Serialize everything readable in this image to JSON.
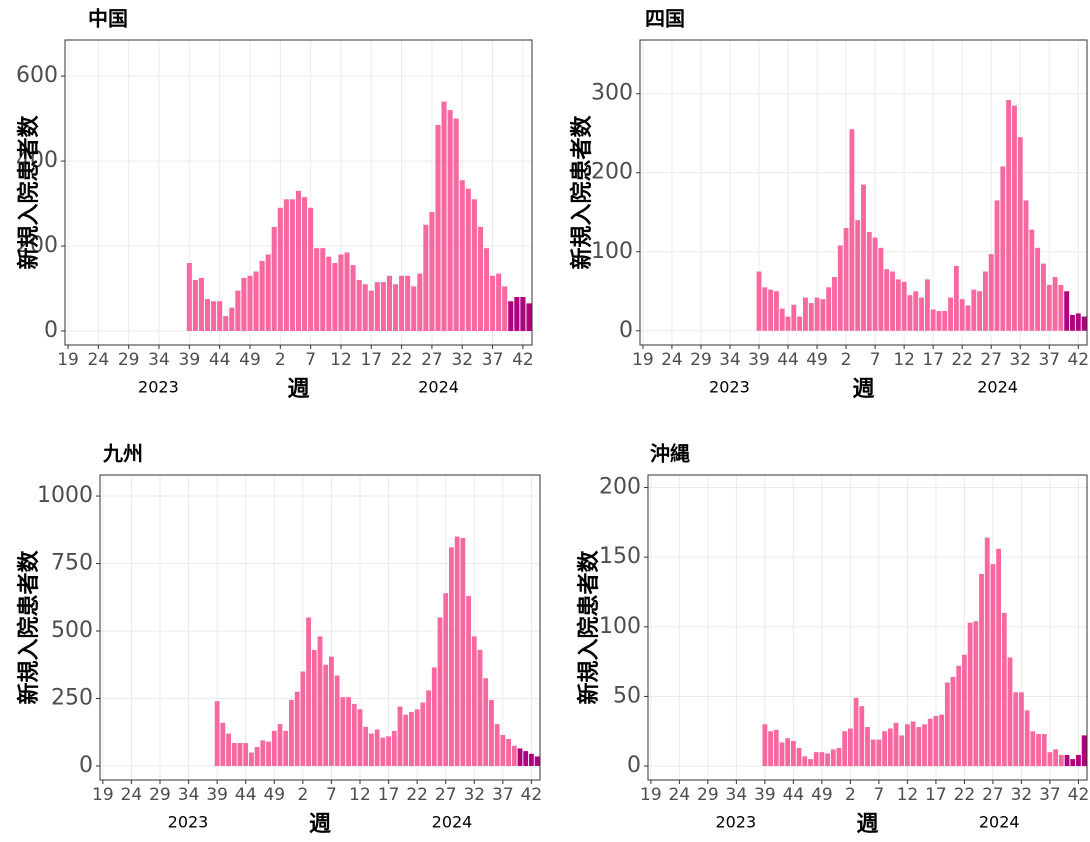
{
  "chart_data": [
    {
      "type": "bar",
      "title": "中国",
      "xlabel": "週",
      "ylabel": "新規入院患者数",
      "x_group_labels": [
        "2023",
        "2024"
      ],
      "categories": [
        "19",
        null,
        null,
        null,
        null,
        "24",
        null,
        null,
        null,
        null,
        "29",
        null,
        null,
        null,
        null,
        "34",
        null,
        null,
        null,
        null,
        "39",
        null,
        null,
        null,
        null,
        "44",
        null,
        null,
        null,
        null,
        "49",
        null,
        null,
        null,
        null,
        "2",
        null,
        null,
        null,
        null,
        "7",
        null,
        null,
        null,
        null,
        "12",
        null,
        null,
        null,
        null,
        "17",
        null,
        null,
        null,
        null,
        "22",
        null,
        null,
        null,
        null,
        "27",
        null,
        null,
        null,
        null,
        "32",
        null,
        null,
        null,
        null,
        "37",
        null,
        null,
        null,
        null,
        "42",
        null
      ],
      "values": [
        null,
        null,
        null,
        null,
        null,
        null,
        null,
        null,
        null,
        null,
        null,
        null,
        null,
        null,
        null,
        null,
        null,
        null,
        null,
        null,
        160,
        120,
        125,
        75,
        70,
        70,
        35,
        55,
        95,
        125,
        130,
        140,
        165,
        180,
        245,
        290,
        310,
        310,
        330,
        315,
        290,
        195,
        195,
        175,
        160,
        180,
        185,
        155,
        120,
        110,
        95,
        115,
        115,
        130,
        110,
        130,
        130,
        105,
        135,
        250,
        280,
        485,
        540,
        520,
        500,
        355,
        335,
        310,
        245,
        195,
        130,
        135,
        105,
        70,
        80,
        80,
        65
      ],
      "color": "#f768a1",
      "highlight_color": "#ae017e",
      "highlight_last": 4,
      "ylim": [
        -33,
        685
      ],
      "yticks": [
        0,
        200,
        400,
        600
      ],
      "grid": true
    },
    {
      "type": "bar",
      "title": "四国",
      "xlabel": "週",
      "ylabel": "新規入院患者数",
      "x_group_labels": [
        "2023",
        "2024"
      ],
      "categories": [
        "19",
        null,
        null,
        null,
        null,
        "24",
        null,
        null,
        null,
        null,
        "29",
        null,
        null,
        null,
        null,
        "34",
        null,
        null,
        null,
        null,
        "39",
        null,
        null,
        null,
        null,
        "44",
        null,
        null,
        null,
        null,
        "49",
        null,
        null,
        null,
        null,
        "2",
        null,
        null,
        null,
        null,
        "7",
        null,
        null,
        null,
        null,
        "12",
        null,
        null,
        null,
        null,
        "17",
        null,
        null,
        null,
        null,
        "22",
        null,
        null,
        null,
        null,
        "27",
        null,
        null,
        null,
        null,
        "32",
        null,
        null,
        null,
        null,
        "37",
        null,
        null,
        null,
        null,
        "42",
        null
      ],
      "values": [
        null,
        null,
        null,
        null,
        null,
        null,
        null,
        null,
        null,
        null,
        null,
        null,
        null,
        null,
        null,
        null,
        null,
        null,
        null,
        null,
        75,
        55,
        52,
        50,
        28,
        18,
        33,
        18,
        42,
        35,
        42,
        40,
        55,
        68,
        108,
        130,
        255,
        140,
        185,
        125,
        118,
        105,
        78,
        75,
        65,
        62,
        45,
        50,
        42,
        65,
        27,
        25,
        25,
        42,
        82,
        40,
        32,
        52,
        50,
        75,
        97,
        165,
        208,
        292,
        285,
        245,
        165,
        128,
        105,
        85,
        58,
        68,
        58,
        50,
        20,
        22,
        18
      ],
      "color": "#f768a1",
      "highlight_color": "#ae017e",
      "highlight_last": 4,
      "ylim": [
        -18,
        368
      ],
      "yticks": [
        0,
        100,
        200,
        300
      ],
      "grid": true
    },
    {
      "type": "bar",
      "title": "九州",
      "xlabel": "週",
      "ylabel": "新規入院患者数",
      "x_group_labels": [
        "2023",
        "2024"
      ],
      "categories": [
        "19",
        null,
        null,
        null,
        null,
        "24",
        null,
        null,
        null,
        null,
        "29",
        null,
        null,
        null,
        null,
        "34",
        null,
        null,
        null,
        null,
        "39",
        null,
        null,
        null,
        null,
        "44",
        null,
        null,
        null,
        null,
        "49",
        null,
        null,
        null,
        null,
        "2",
        null,
        null,
        null,
        null,
        "7",
        null,
        null,
        null,
        null,
        "12",
        null,
        null,
        null,
        null,
        "17",
        null,
        null,
        null,
        null,
        "22",
        null,
        null,
        null,
        null,
        "27",
        null,
        null,
        null,
        null,
        "32",
        null,
        null,
        null,
        null,
        "37",
        null,
        null,
        null,
        null,
        "42",
        null
      ],
      "values": [
        null,
        null,
        null,
        null,
        null,
        null,
        null,
        null,
        null,
        null,
        null,
        null,
        null,
        null,
        null,
        null,
        null,
        null,
        null,
        null,
        240,
        160,
        120,
        85,
        85,
        85,
        50,
        70,
        95,
        90,
        130,
        155,
        130,
        245,
        275,
        350,
        550,
        430,
        480,
        375,
        405,
        335,
        255,
        255,
        230,
        210,
        145,
        120,
        135,
        105,
        110,
        130,
        220,
        190,
        200,
        210,
        235,
        280,
        365,
        550,
        640,
        810,
        850,
        845,
        630,
        480,
        430,
        325,
        245,
        155,
        115,
        100,
        75,
        65,
        55,
        45,
        35
      ],
      "color": "#f768a1",
      "highlight_color": "#ae017e",
      "highlight_last": 4,
      "ylim": [
        -52,
        1078
      ],
      "yticks": [
        0,
        250,
        500,
        750,
        1000
      ],
      "grid": true
    },
    {
      "type": "bar",
      "title": "沖縄",
      "xlabel": "週",
      "ylabel": "新規入院患者数",
      "x_group_labels": [
        "2023",
        "2024"
      ],
      "categories": [
        "19",
        null,
        null,
        null,
        null,
        "24",
        null,
        null,
        null,
        null,
        "29",
        null,
        null,
        null,
        null,
        "34",
        null,
        null,
        null,
        null,
        "39",
        null,
        null,
        null,
        null,
        "44",
        null,
        null,
        null,
        null,
        "49",
        null,
        null,
        null,
        null,
        "2",
        null,
        null,
        null,
        null,
        "7",
        null,
        null,
        null,
        null,
        "12",
        null,
        null,
        null,
        null,
        "17",
        null,
        null,
        null,
        null,
        "22",
        null,
        null,
        null,
        null,
        "27",
        null,
        null,
        null,
        null,
        "32",
        null,
        null,
        null,
        null,
        "37",
        null,
        null,
        null,
        null,
        "42",
        null
      ],
      "values": [
        null,
        null,
        null,
        null,
        null,
        null,
        null,
        null,
        null,
        null,
        null,
        null,
        null,
        null,
        null,
        null,
        null,
        null,
        null,
        null,
        30,
        25,
        26,
        17,
        20,
        18,
        13,
        7,
        5,
        10,
        10,
        9,
        12,
        13,
        25,
        27,
        49,
        43,
        28,
        19,
        19,
        25,
        27,
        31,
        22,
        30,
        32,
        28,
        30,
        34,
        36,
        37,
        60,
        64,
        72,
        80,
        103,
        104,
        138,
        164,
        145,
        156,
        110,
        78,
        53,
        53,
        40,
        25,
        23,
        23,
        10,
        12,
        8,
        8,
        5,
        8,
        22
      ],
      "color": "#f768a1",
      "highlight_color": "#ae017e",
      "highlight_last": 4,
      "ylim": [
        -10,
        209
      ],
      "yticks": [
        0,
        50,
        100,
        150,
        200
      ],
      "grid": true
    }
  ]
}
